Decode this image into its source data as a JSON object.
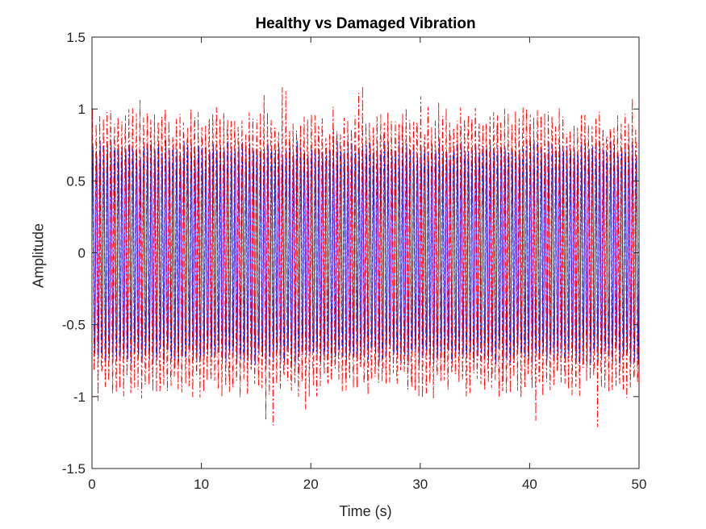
{
  "chart_data": {
    "type": "line",
    "title": "Healthy vs Damaged Vibration",
    "xlabel": "Time (s)",
    "ylabel": "Amplitude",
    "xlim": [
      0,
      50
    ],
    "ylim": [
      -1.5,
      1.5
    ],
    "xticks": [
      0,
      10,
      20,
      30,
      40,
      50
    ],
    "xtick_labels": [
      "0",
      "10",
      "20",
      "30",
      "40",
      "50"
    ],
    "yticks": [
      -1.5,
      -1,
      -0.5,
      0,
      0.5,
      1,
      1.5
    ],
    "ytick_labels": [
      "-1.5",
      "-1",
      "-0.5",
      "0",
      "0.5",
      "1",
      "1.5"
    ],
    "grid": false,
    "legend": "none",
    "series": [
      {
        "color": "#0000ff",
        "style": "solid",
        "approx_amplitude": 0.85,
        "approx_frequency_hz": 3
      },
      {
        "color": "#ff0000",
        "style": "dash-dot",
        "approx_amplitude": 1.05,
        "approx_frequency_hz": 3
      }
    ]
  }
}
